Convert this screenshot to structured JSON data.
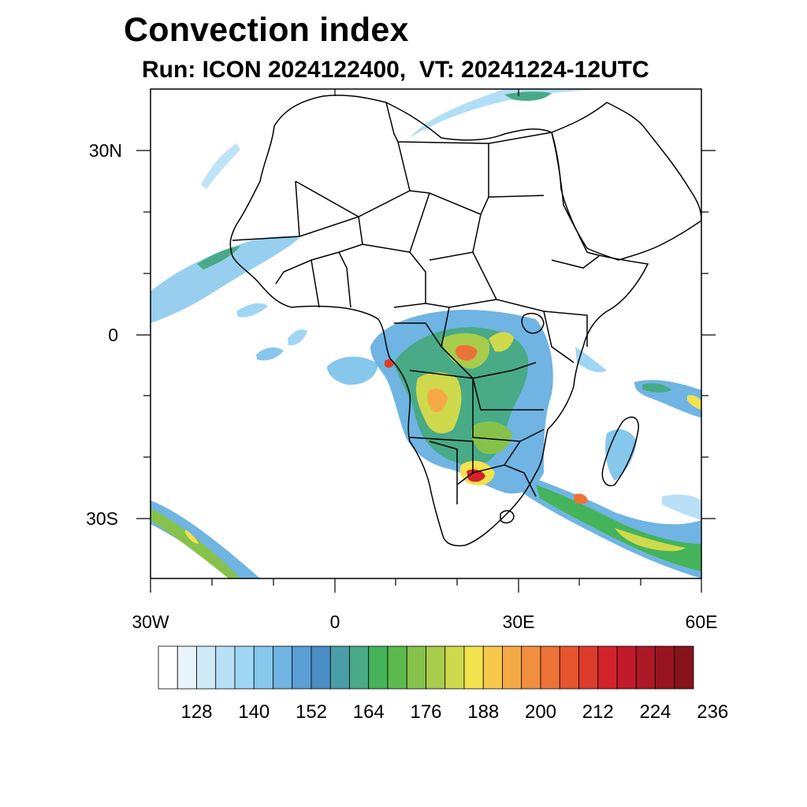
{
  "title": "Convection index",
  "subtitle": "Run: ICON 2024122400,  VT: 20241224-12UTC",
  "axes": {
    "lat_labels": [
      "30N",
      "0",
      "30S"
    ],
    "lon_labels": [
      "30W",
      "0",
      "30E",
      "60E"
    ]
  },
  "colorbar": {
    "labels": [
      "128",
      "140",
      "152",
      "164",
      "176",
      "188",
      "200",
      "212",
      "224",
      "236"
    ],
    "colors": [
      "#ffffff",
      "#e8f4fb",
      "#cfe9f7",
      "#b8e0f6",
      "#9fd6f4",
      "#86c7ec",
      "#6fb4e2",
      "#5a9fd4",
      "#4b8ec4",
      "#4a9da6",
      "#48aa87",
      "#44b35a",
      "#5cba4c",
      "#86c24b",
      "#a8cc4c",
      "#cfd94c",
      "#f2e24e",
      "#f8c84a",
      "#f5a944",
      "#f08f3d",
      "#ec7337",
      "#e65530",
      "#de3b2c",
      "#d2232a",
      "#c01a2b",
      "#ac1826",
      "#98151f",
      "#86131c"
    ]
  }
}
